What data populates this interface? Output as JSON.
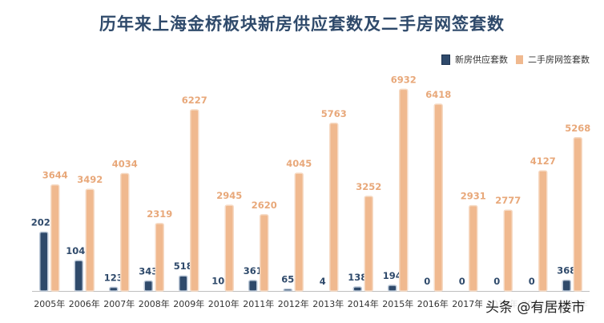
{
  "chart_data": {
    "type": "bar",
    "title": "历年来上海金桥板块新房供应套数及二手房网签套数",
    "categories": [
      "2005年",
      "2006年",
      "2007年",
      "2008年",
      "2009年",
      "2010年",
      "2011年",
      "2012年",
      "2013年",
      "2014年",
      "2015年",
      "2016年",
      "2017年",
      "2018年",
      "2019年",
      "2020年"
    ],
    "series": [
      {
        "name": "新房供应套数",
        "color": "#2f4a6b",
        "values": [
          2020,
          1042,
          123,
          343,
          518,
          10,
          361,
          65,
          4,
          138,
          194,
          0,
          0,
          0,
          0,
          368
        ]
      },
      {
        "name": "二手房网签套数",
        "color": "#f0b98f",
        "values": [
          3644,
          3492,
          4034,
          2319,
          6227,
          2945,
          2620,
          4045,
          5763,
          3252,
          6932,
          6418,
          2931,
          2777,
          4127,
          5268
        ]
      }
    ],
    "ylim": [
      0,
      7300
    ],
    "legend": "top-right",
    "grid": false
  },
  "watermark": "头条 @有居楼市"
}
